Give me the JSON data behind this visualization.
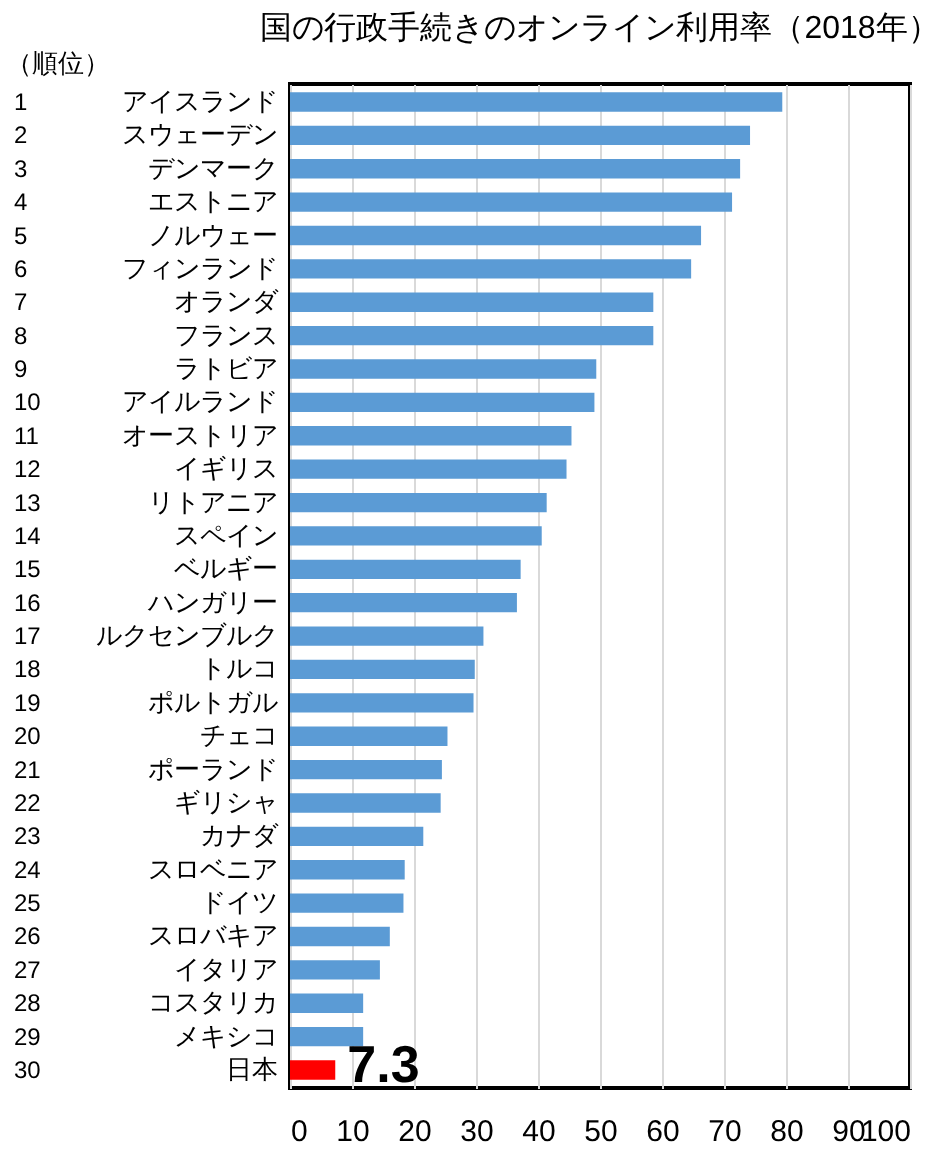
{
  "chart_data": {
    "type": "bar",
    "orientation": "horizontal",
    "title": "国の行政手続きのオンライン利用率（2018年）",
    "annotations": [
      "（順位）"
    ],
    "categories": [
      "1 アイスランド",
      "2 スウェーデン",
      "3 デンマーク",
      "4 エストニア",
      "5 ノルウェー",
      "6 フィンランド",
      "7 オランダ",
      "8 フランス",
      "9 ラトビア",
      "10 アイルランド",
      "11 オーストリア",
      "12 イギリス",
      "13 リトアニア",
      "14 スペイン",
      "15 ベルギー",
      "16 ハンガリー",
      "17 ルクセンブルク",
      "18 トルコ",
      "19 ポルトガル",
      "20 チェコ",
      "21 ポーランド",
      "22 ギリシャ",
      "23 カナダ",
      "24 スロベニア",
      "25 ドイツ",
      "26 スロバキア",
      "27 イタリア",
      "28 コスタリカ",
      "29 メキシコ",
      "30 日本"
    ],
    "values": [
      79.4,
      74.2,
      72.6,
      71.3,
      66.3,
      64.7,
      58.6,
      58.6,
      49.4,
      49.1,
      45.4,
      44.6,
      41.4,
      40.6,
      37.2,
      36.6,
      31.2,
      29.8,
      29.6,
      25.4,
      24.5,
      24.3,
      21.5,
      18.5,
      18.3,
      16.1,
      14.5,
      11.8,
      11.8,
      7.3
    ],
    "colors": [
      "#5b9bd5",
      "#5b9bd5",
      "#5b9bd5",
      "#5b9bd5",
      "#5b9bd5",
      "#5b9bd5",
      "#5b9bd5",
      "#5b9bd5",
      "#5b9bd5",
      "#5b9bd5",
      "#5b9bd5",
      "#5b9bd5",
      "#5b9bd5",
      "#5b9bd5",
      "#5b9bd5",
      "#5b9bd5",
      "#5b9bd5",
      "#5b9bd5",
      "#5b9bd5",
      "#5b9bd5",
      "#5b9bd5",
      "#5b9bd5",
      "#5b9bd5",
      "#5b9bd5",
      "#5b9bd5",
      "#5b9bd5",
      "#5b9bd5",
      "#5b9bd5",
      "#5b9bd5",
      "#ff0000"
    ],
    "value_labels": [
      null,
      null,
      null,
      null,
      null,
      null,
      null,
      null,
      null,
      null,
      null,
      null,
      null,
      null,
      null,
      null,
      null,
      null,
      null,
      null,
      null,
      null,
      null,
      null,
      null,
      null,
      null,
      null,
      null,
      "7.3"
    ],
    "xlim": [
      0,
      100
    ],
    "xticks": [
      0,
      10,
      20,
      30,
      40,
      50,
      60,
      70,
      80,
      90,
      100
    ],
    "grid": "x"
  }
}
